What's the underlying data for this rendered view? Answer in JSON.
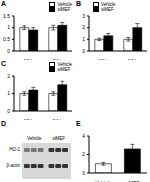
{
  "chart_data": [
    {
      "type": "bar",
      "title": "A",
      "categories": [
        "12 h",
        "24 h"
      ],
      "series": [
        {
          "name": "Vehicle",
          "color": "#ffffff",
          "values": [
            1.0,
            1.0
          ],
          "errors": [
            0.08,
            0.1
          ]
        },
        {
          "name": "siMEF",
          "color": "#000000",
          "values": [
            0.9,
            1.1
          ],
          "errors": [
            0.1,
            0.12
          ]
        }
      ],
      "ylim": [
        0,
        1.5
      ],
      "yticks": [
        0,
        0.5,
        1,
        1.5
      ],
      "legend": "upper right"
    },
    {
      "type": "bar",
      "title": "B",
      "categories": [
        "12 h",
        "24 h"
      ],
      "series": [
        {
          "name": "Vehicle",
          "color": "#ffffff",
          "values": [
            1.0,
            1.0
          ],
          "errors": [
            0.1,
            0.15
          ]
        },
        {
          "name": "siMEF",
          "color": "#000000",
          "values": [
            1.3,
            2.0
          ],
          "errors": [
            0.2,
            0.35
          ]
        }
      ],
      "ylim": [
        0,
        3
      ],
      "yticks": [
        0,
        1,
        2,
        3
      ],
      "legend": "upper left"
    },
    {
      "type": "bar",
      "title": "C",
      "categories": [
        "12 h",
        "24 h"
      ],
      "series": [
        {
          "name": "Vehicle",
          "color": "#ffffff",
          "values": [
            1.0,
            1.0
          ],
          "errors": [
            0.1,
            0.1
          ]
        },
        {
          "name": "siMEF",
          "color": "#000000",
          "values": [
            1.2,
            1.5
          ],
          "errors": [
            0.15,
            0.2
          ]
        }
      ],
      "ylim": [
        0,
        2
      ],
      "yticks": [
        0,
        1,
        2
      ],
      "legend": "upper right"
    },
    {
      "type": "blot",
      "title": "D",
      "rows": [
        "HO-1",
        "β-actin"
      ],
      "columns": [
        "Vehicle",
        "siMEF"
      ]
    },
    {
      "type": "bar",
      "title": "E",
      "categories": [
        "Vehicle",
        "siMEF"
      ],
      "values": [
        1.0,
        2.6
      ],
      "errors": [
        0.15,
        0.5
      ],
      "colors": [
        "#ffffff",
        "#000000"
      ],
      "ylim": [
        0,
        4
      ],
      "yticks": [
        0,
        1,
        2,
        3,
        4
      ]
    }
  ]
}
